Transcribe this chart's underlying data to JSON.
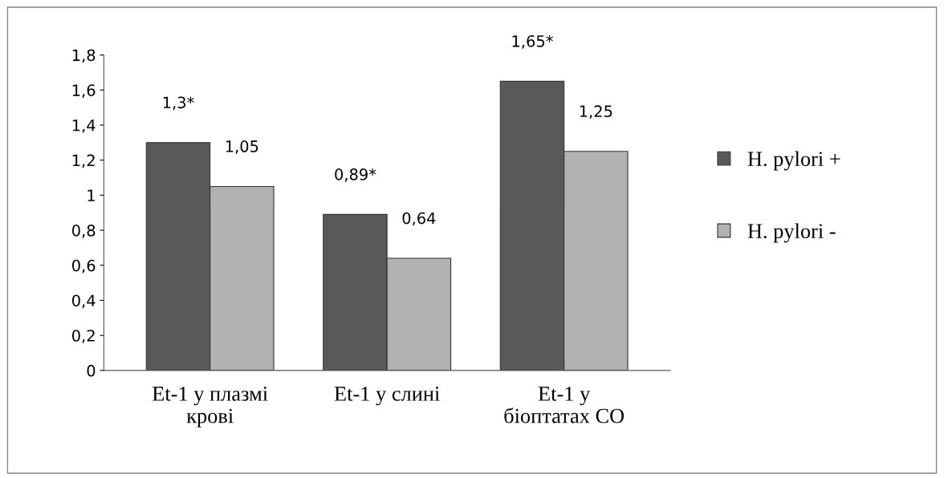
{
  "chart_data": {
    "type": "bar",
    "categories": [
      "Et-1 у плазмі\nкрові",
      "Et-1 у слині",
      "Et-1 у\nбіоптатах СО"
    ],
    "series": [
      {
        "name": "H. pylori +",
        "color": "#595959",
        "values": [
          1.3,
          0.89,
          1.65
        ],
        "value_labels": [
          "1,3*",
          "0,89*",
          "1,65*"
        ]
      },
      {
        "name": "H. pylori -",
        "color": "#b2b2b2",
        "values": [
          1.05,
          0.64,
          1.25
        ],
        "value_labels": [
          "1,05",
          "0,64",
          "1,25"
        ]
      }
    ],
    "ylim": [
      0,
      1.8
    ],
    "yticks": [
      0,
      {
        "value": 0.2,
        "label": "0,2"
      },
      {
        "value": 0.4,
        "label": "0,4"
      },
      {
        "value": 0.6,
        "label": "0,6"
      },
      {
        "value": 0.8,
        "label": "0,8"
      },
      1,
      {
        "value": 1.2,
        "label": "1,2"
      },
      {
        "value": 1.4,
        "label": "1,4"
      },
      {
        "value": 1.6,
        "label": "1,6"
      },
      {
        "value": 1.8,
        "label": "1,8"
      }
    ],
    "grid": false,
    "legend": "right"
  }
}
